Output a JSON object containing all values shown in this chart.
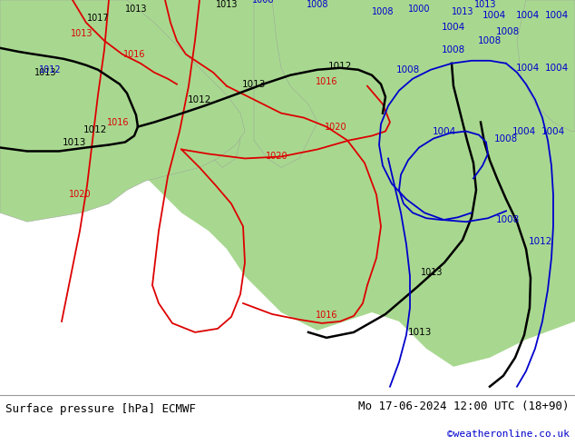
{
  "title_left": "Surface pressure [hPa] ECMWF",
  "title_right": "Mo 17-06-2024 12:00 UTC (18+90)",
  "credit": "©weatheronline.co.uk",
  "figsize": [
    6.34,
    4.9
  ],
  "dpi": 100,
  "bottom_bar_color": "#ffffff",
  "bottom_bar_height": 0.115,
  "title_fontsize": 9,
  "credit_fontsize": 8,
  "credit_color": "#0000cc",
  "land_color": "#a8d890",
  "sea_color": "#d8d8e8",
  "red": "#dd0000",
  "black": "#000000",
  "blue": "#0000cc"
}
